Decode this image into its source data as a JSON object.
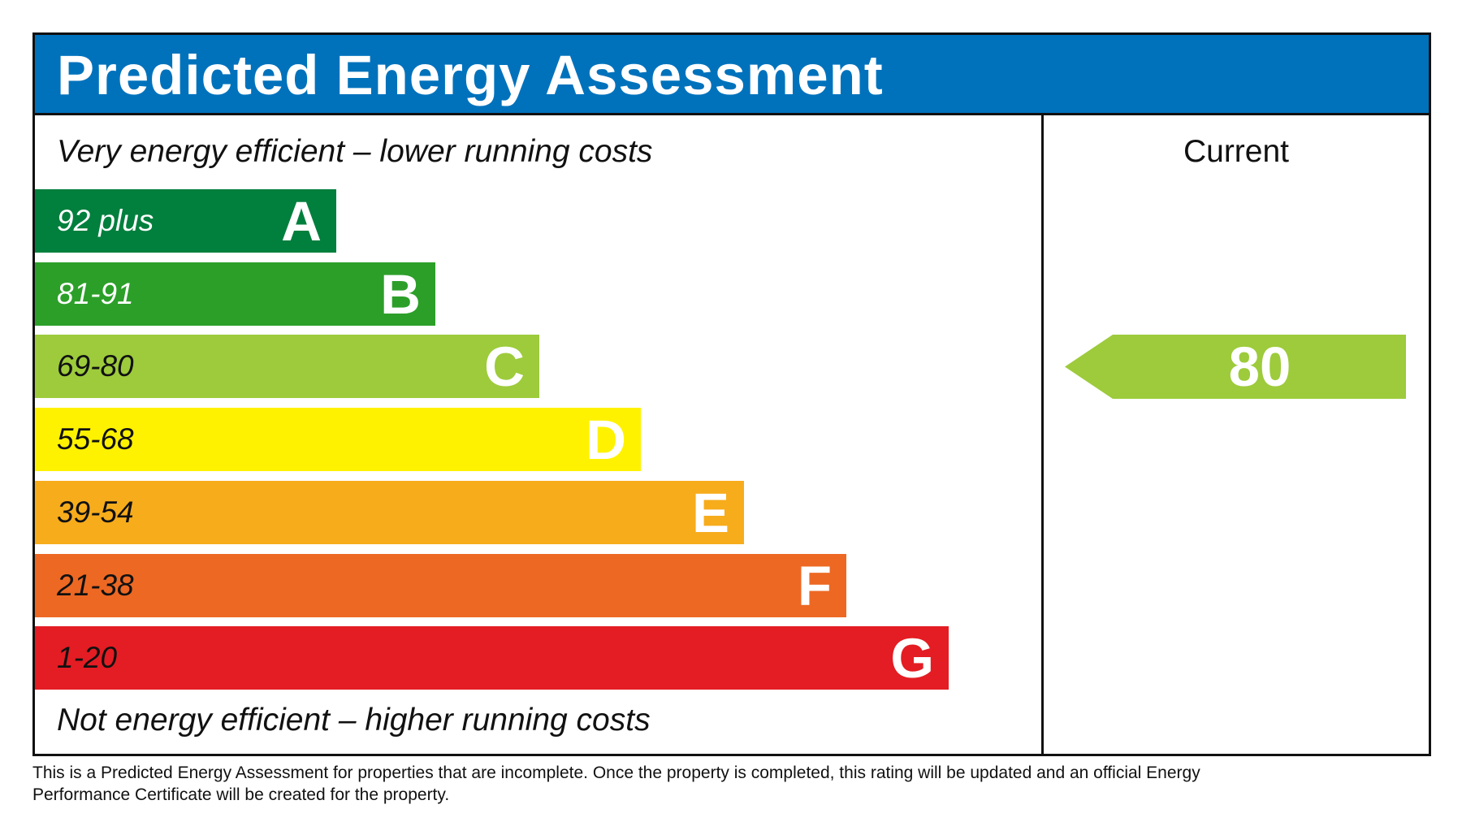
{
  "title": "Predicted Energy Assessment",
  "top_note": "Very energy efficient – lower running costs",
  "bottom_note": "Not energy efficient – higher running costs",
  "current_label": "Current",
  "current_value": "80",
  "current_band_color": "#9dcb3b",
  "header_color": "#0072bc",
  "bands": [
    {
      "range": "92 plus",
      "letter": "A",
      "color": "#007f3d",
      "text_color": "#ffffff"
    },
    {
      "range": "81-91",
      "letter": "B",
      "color": "#2c9f29",
      "text_color": "#ffffff"
    },
    {
      "range": "69-80",
      "letter": "C",
      "color": "#9dcb3b",
      "text_color": "#111111"
    },
    {
      "range": "55-68",
      "letter": "D",
      "color": "#fff200",
      "text_color": "#111111"
    },
    {
      "range": "39-54",
      "letter": "E",
      "color": "#f7ac1c",
      "text_color": "#111111"
    },
    {
      "range": "21-38",
      "letter": "F",
      "color": "#ed6823",
      "text_color": "#111111"
    },
    {
      "range": "1-20",
      "letter": "G",
      "color": "#e31d23",
      "text_color": "#111111"
    }
  ],
  "footer": "This is a Predicted Energy Assessment for properties that are incomplete. Once the property is completed, this rating will be updated and an official Energy Performance Certificate will be created for the property."
}
